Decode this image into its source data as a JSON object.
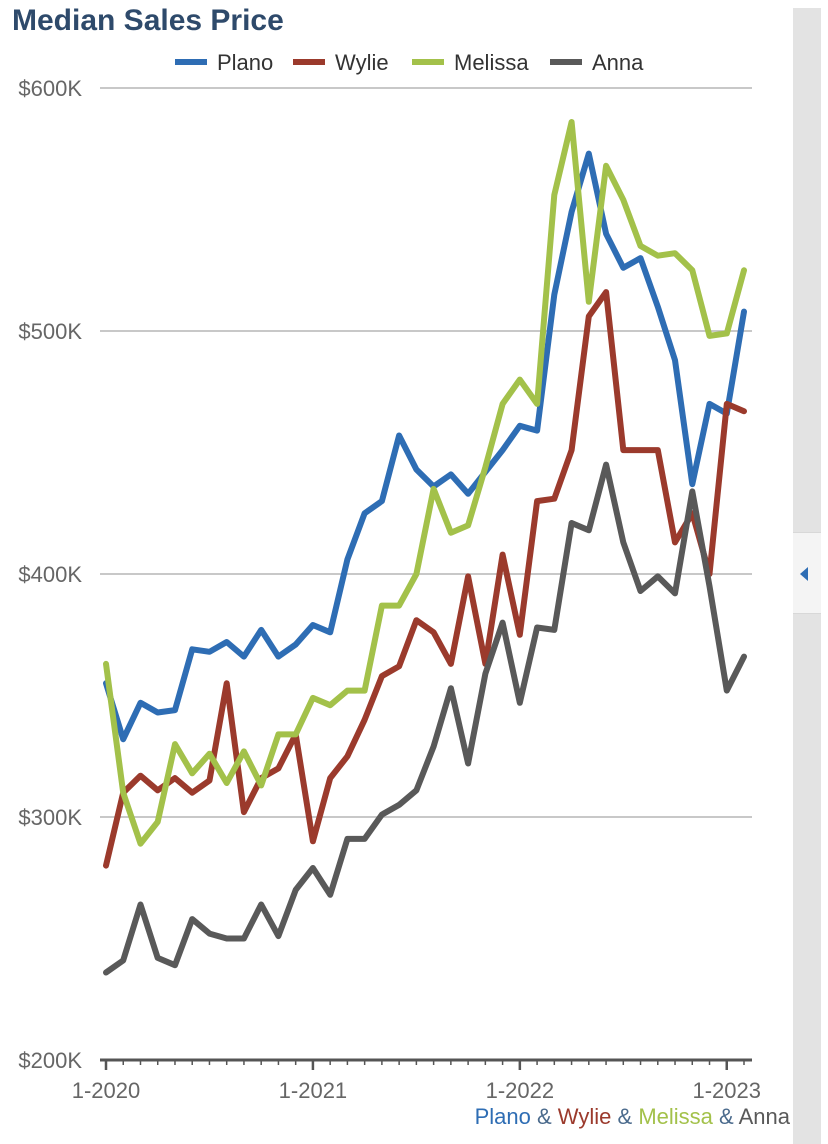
{
  "colors": {
    "Plano": "#2e6db4",
    "Wylie": "#9b3a2c",
    "Melissa": "#a3c14a",
    "Anna": "#595959",
    "title": "#2e4a6b"
  },
  "footer": {
    "city1": "Plano",
    "sep1": "&",
    "city2": "Wylie",
    "sep2": "&",
    "city3": "Melissa",
    "sep3": "&",
    "city4": "Anna"
  },
  "panel": {
    "collapse_icon": "chevron-left-icon"
  },
  "chart_data": {
    "type": "line",
    "title": "Median Sales Price",
    "legend_position": "top",
    "grid": true,
    "ylim": [
      200000,
      600000
    ],
    "yticks": [
      {
        "value": 200000,
        "label": "$200K"
      },
      {
        "value": 300000,
        "label": "$300K"
      },
      {
        "value": 400000,
        "label": "$400K"
      },
      {
        "value": 500000,
        "label": "$500K"
      },
      {
        "value": 600000,
        "label": "$600K"
      }
    ],
    "xticks": [
      {
        "month": "2020-01",
        "label": "1-2020"
      },
      {
        "month": "2021-01",
        "label": "1-2021"
      },
      {
        "month": "2022-01",
        "label": "1-2022"
      },
      {
        "month": "2023-01",
        "label": "1-2023"
      }
    ],
    "x": [
      "2020-01",
      "2020-02",
      "2020-03",
      "2020-04",
      "2020-05",
      "2020-06",
      "2020-07",
      "2020-08",
      "2020-09",
      "2020-10",
      "2020-11",
      "2020-12",
      "2021-01",
      "2021-02",
      "2021-03",
      "2021-04",
      "2021-05",
      "2021-06",
      "2021-07",
      "2021-08",
      "2021-09",
      "2021-10",
      "2021-11",
      "2021-12",
      "2022-01",
      "2022-02",
      "2022-03",
      "2022-04",
      "2022-05",
      "2022-06",
      "2022-07",
      "2022-08",
      "2022-09",
      "2022-10",
      "2022-11",
      "2022-12",
      "2023-01",
      "2023-02"
    ],
    "series": [
      {
        "name": "Plano",
        "values": [
          355000,
          332000,
          347000,
          343000,
          344000,
          369000,
          368000,
          372000,
          366000,
          377000,
          366000,
          371000,
          379000,
          376000,
          406000,
          425000,
          430000,
          457000,
          443000,
          436000,
          441000,
          433000,
          442000,
          451000,
          461000,
          459000,
          515000,
          549000,
          573000,
          540000,
          526000,
          530000,
          510000,
          488000,
          437000,
          470000,
          466000,
          508000
        ]
      },
      {
        "name": "Wylie",
        "values": [
          280000,
          310000,
          317000,
          311000,
          316000,
          310000,
          315000,
          355000,
          302000,
          316000,
          320000,
          334000,
          290000,
          316000,
          325000,
          340000,
          358000,
          362000,
          381000,
          376000,
          363000,
          399000,
          363000,
          408000,
          375000,
          430000,
          431000,
          451000,
          506000,
          516000,
          451000,
          451000,
          451000,
          413000,
          425000,
          400000,
          470000,
          467000
        ]
      },
      {
        "name": "Melissa",
        "values": [
          363000,
          310000,
          289000,
          298000,
          330000,
          318000,
          326000,
          314000,
          327000,
          313000,
          334000,
          334000,
          349000,
          346000,
          352000,
          352000,
          387000,
          387000,
          400000,
          435000,
          417000,
          420000,
          444000,
          470000,
          480000,
          470000,
          556000,
          586000,
          512000,
          568000,
          554000,
          535000,
          531000,
          532000,
          525000,
          498000,
          499000,
          525000
        ]
      },
      {
        "name": "Anna",
        "values": [
          236000,
          241000,
          264000,
          242000,
          239000,
          258000,
          252000,
          250000,
          250000,
          264000,
          251000,
          270000,
          279000,
          268000,
          291000,
          291000,
          301000,
          305000,
          311000,
          329000,
          353000,
          322000,
          359000,
          380000,
          347000,
          378000,
          377000,
          421000,
          418000,
          445000,
          413000,
          393000,
          399000,
          392000,
          434000,
          395000,
          352000,
          366000
        ]
      }
    ]
  }
}
